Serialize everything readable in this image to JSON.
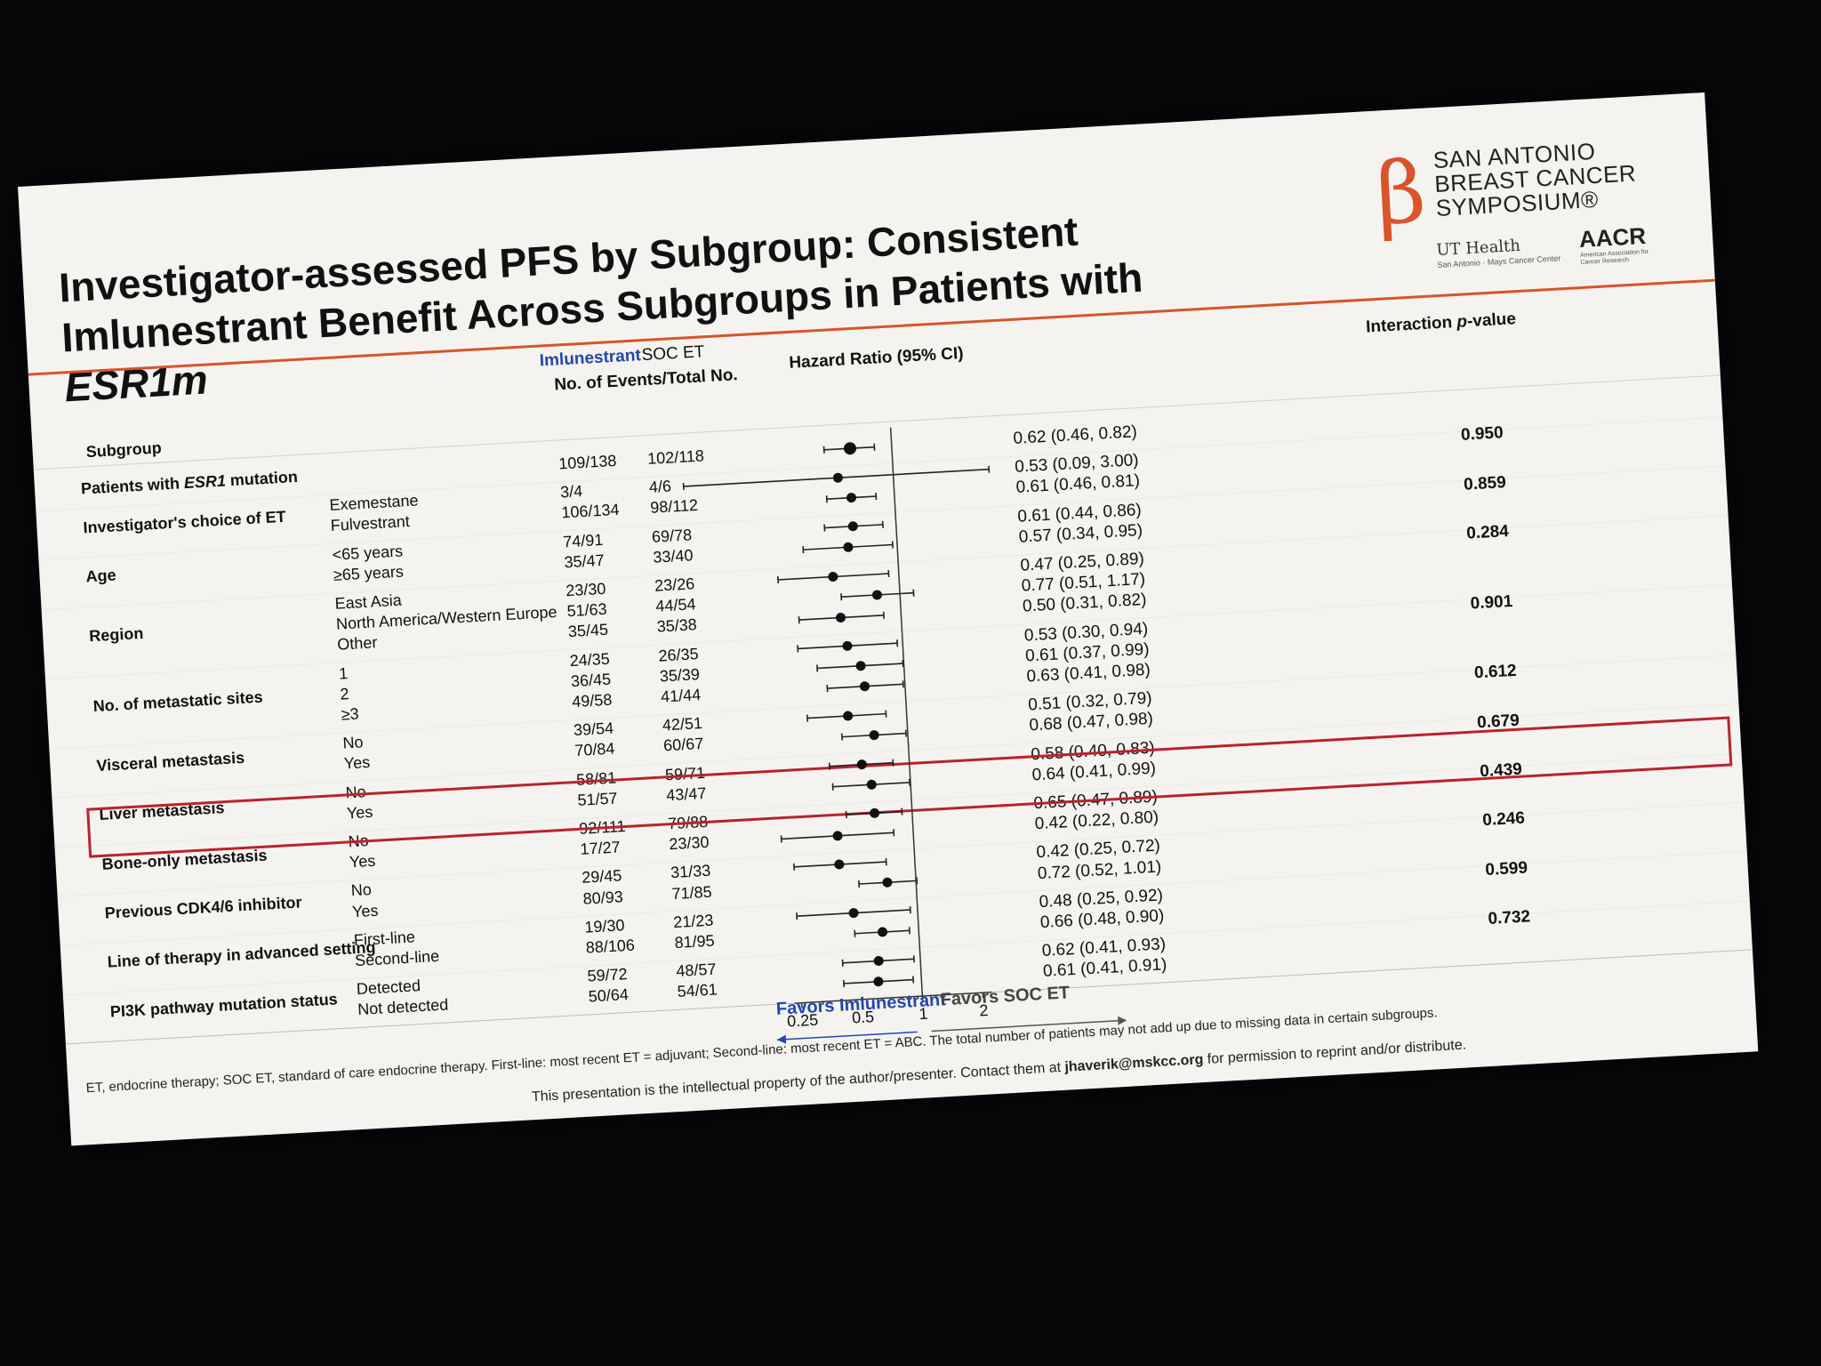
{
  "title_line1": "Investigator-assessed PFS by Subgroup: Consistent",
  "title_line2_prefix": "Imlunestrant Benefit Across Subgroups in Patients with ",
  "title_line2_italic": "ESR1m",
  "logo": {
    "line1": "SAN ANTONIO",
    "line2": "BREAST CANCER",
    "line3": "SYMPOSIUM®",
    "ut_health": "UT Health",
    "ut_sub": "San Antonio · Mays Cancer Center",
    "aacr": "AACR",
    "aacr_sub": "American Association for Cancer Research"
  },
  "headers": {
    "imlunestrant": "Imlunestrant",
    "soc": "SOC ET",
    "events": "No. of Events/Total No.",
    "hr": "Hazard Ratio (95% CI)",
    "interaction_prefix": "Interaction ",
    "interaction_italic": "p",
    "interaction_suffix": "-value",
    "subgroup": "Subgroup"
  },
  "chart_data": {
    "type": "forest",
    "xscale": "log",
    "xticks": [
      0.25,
      0.5,
      1,
      2
    ],
    "xtick_labels": [
      "0.25",
      "0.5",
      "1",
      "2"
    ],
    "reference_line": 1,
    "favors_left": "Favors Imlunestrant",
    "favors_right": "Favors SOC ET",
    "groups": [
      {
        "label": "Patients with ",
        "label_italic": "ESR1",
        "label_suffix": " mutation",
        "p": "",
        "rows": [
          {
            "cat": "",
            "imlu": "109/138",
            "soc": "102/118",
            "hr": 0.62,
            "lo": 0.46,
            "hi": 0.82,
            "text": "0.62 (0.46, 0.82)"
          }
        ]
      },
      {
        "label": "Investigator's choice of ET",
        "p": "0.950",
        "rows": [
          {
            "cat": "Exemestane",
            "imlu": "3/4",
            "soc": "4/6",
            "hr": 0.53,
            "lo": 0.09,
            "hi": 3.0,
            "text": "0.53 (0.09, 3.00)"
          },
          {
            "cat": "Fulvestrant",
            "imlu": "106/134",
            "soc": "98/112",
            "hr": 0.61,
            "lo": 0.46,
            "hi": 0.81,
            "text": "0.61 (0.46, 0.81)"
          }
        ]
      },
      {
        "label": "Age",
        "p": "0.859",
        "rows": [
          {
            "cat": "<65 years",
            "imlu": "74/91",
            "soc": "69/78",
            "hr": 0.61,
            "lo": 0.44,
            "hi": 0.86,
            "text": "0.61 (0.44, 0.86)"
          },
          {
            "cat": "≥65 years",
            "imlu": "35/47",
            "soc": "33/40",
            "hr": 0.57,
            "lo": 0.34,
            "hi": 0.95,
            "text": "0.57 (0.34, 0.95)"
          }
        ]
      },
      {
        "label": "Region",
        "p": "0.284",
        "rows": [
          {
            "cat": "East Asia",
            "imlu": "23/30",
            "soc": "23/26",
            "hr": 0.47,
            "lo": 0.25,
            "hi": 0.89,
            "text": "0.47 (0.25, 0.89)"
          },
          {
            "cat": "North America/Western Europe",
            "imlu": "51/63",
            "soc": "44/54",
            "hr": 0.77,
            "lo": 0.51,
            "hi": 1.17,
            "text": "0.77 (0.51, 1.17)"
          },
          {
            "cat": "Other",
            "imlu": "35/45",
            "soc": "35/38",
            "hr": 0.5,
            "lo": 0.31,
            "hi": 0.82,
            "text": "0.50 (0.31, 0.82)"
          }
        ]
      },
      {
        "label": "No. of metastatic sites",
        "p": "0.901",
        "rows": [
          {
            "cat": "1",
            "imlu": "24/35",
            "soc": "26/35",
            "hr": 0.53,
            "lo": 0.3,
            "hi": 0.94,
            "text": "0.53 (0.30, 0.94)"
          },
          {
            "cat": "2",
            "imlu": "36/45",
            "soc": "35/39",
            "hr": 0.61,
            "lo": 0.37,
            "hi": 0.99,
            "text": "0.61 (0.37, 0.99)"
          },
          {
            "cat": "≥3",
            "imlu": "49/58",
            "soc": "41/44",
            "hr": 0.63,
            "lo": 0.41,
            "hi": 0.98,
            "text": "0.63 (0.41, 0.98)"
          }
        ]
      },
      {
        "label": "Visceral metastasis",
        "p": "0.612",
        "highlight": true,
        "rows": [
          {
            "cat": "No",
            "imlu": "39/54",
            "soc": "42/51",
            "hr": 0.51,
            "lo": 0.32,
            "hi": 0.79,
            "text": "0.51 (0.32, 0.79)"
          },
          {
            "cat": "Yes",
            "imlu": "70/84",
            "soc": "60/67",
            "hr": 0.68,
            "lo": 0.47,
            "hi": 0.98,
            "text": "0.68 (0.47, 0.98)"
          }
        ]
      },
      {
        "label": "Liver metastasis",
        "p": "0.679",
        "rows": [
          {
            "cat": "No",
            "imlu": "58/81",
            "soc": "59/71",
            "hr": 0.58,
            "lo": 0.4,
            "hi": 0.83,
            "text": "0.58 (0.40, 0.83)"
          },
          {
            "cat": "Yes",
            "imlu": "51/57",
            "soc": "43/47",
            "hr": 0.64,
            "lo": 0.41,
            "hi": 0.99,
            "text": "0.64 (0.41, 0.99)"
          }
        ]
      },
      {
        "label": "Bone-only metastasis",
        "p": "0.439",
        "rows": [
          {
            "cat": "No",
            "imlu": "92/111",
            "soc": "79/88",
            "hr": 0.65,
            "lo": 0.47,
            "hi": 0.89,
            "text": "0.65 (0.47, 0.89)"
          },
          {
            "cat": "Yes",
            "imlu": "17/27",
            "soc": "23/30",
            "hr": 0.42,
            "lo": 0.22,
            "hi": 0.8,
            "text": "0.42 (0.22, 0.80)"
          }
        ]
      },
      {
        "label": "Previous CDK4/6 inhibitor",
        "p": "0.246",
        "rows": [
          {
            "cat": "No",
            "imlu": "29/45",
            "soc": "31/33",
            "hr": 0.42,
            "lo": 0.25,
            "hi": 0.72,
            "text": "0.42 (0.25, 0.72)"
          },
          {
            "cat": "Yes",
            "imlu": "80/93",
            "soc": "71/85",
            "hr": 0.72,
            "lo": 0.52,
            "hi": 1.01,
            "text": "0.72 (0.52, 1.01)"
          }
        ]
      },
      {
        "label": "Line of therapy in advanced setting",
        "p": "0.599",
        "rows": [
          {
            "cat": "First-line",
            "imlu": "19/30",
            "soc": "21/23",
            "hr": 0.48,
            "lo": 0.25,
            "hi": 0.92,
            "text": "0.48 (0.25, 0.92)"
          },
          {
            "cat": "Second-line",
            "imlu": "88/106",
            "soc": "81/95",
            "hr": 0.66,
            "lo": 0.48,
            "hi": 0.9,
            "text": "0.66 (0.48, 0.90)"
          }
        ]
      },
      {
        "label": "PI3K pathway mutation status",
        "p": "0.732",
        "rows": [
          {
            "cat": "Detected",
            "imlu": "59/72",
            "soc": "48/57",
            "hr": 0.62,
            "lo": 0.41,
            "hi": 0.93,
            "text": "0.62 (0.41, 0.93)"
          },
          {
            "cat": "Not detected",
            "imlu": "50/64",
            "soc": "54/61",
            "hr": 0.61,
            "lo": 0.41,
            "hi": 0.91,
            "text": "0.61 (0.41, 0.91)"
          }
        ]
      }
    ]
  },
  "footnote": "ET, endocrine therapy; SOC ET, standard of care endocrine therapy. First-line: most recent ET = adjuvant; Second-line: most recent ET = ABC. The total number of patients may not add up due to missing data in certain subgroups.",
  "footer_prefix": "This presentation is the intellectual property of the author/presenter. Contact them at ",
  "footer_email": "jhaverik@mskcc.org",
  "footer_suffix": " for permission to reprint and/or distribute.",
  "colors": {
    "accent": "#d8542a",
    "highlight": "#b8232f",
    "imlunestrant": "#2446a8"
  }
}
